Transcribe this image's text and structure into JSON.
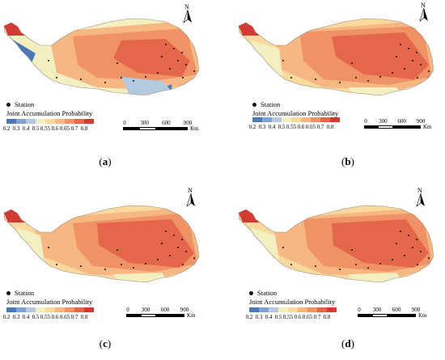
{
  "panels": [
    {
      "id": "a",
      "label_open": "(",
      "label_letter": "a",
      "label_close": ")"
    },
    {
      "id": "b",
      "label_open": "(",
      "label_letter": "b",
      "label_close": ")"
    },
    {
      "id": "c",
      "label_open": "(",
      "label_letter": "c",
      "label_close": ")"
    },
    {
      "id": "d",
      "label_open": "(",
      "label_letter": "d",
      "label_close": ")"
    }
  ],
  "legend": {
    "station_label": "Station",
    "title": "Joint Accumulation Probability",
    "class_labels": [
      "0.2",
      "0.3",
      "0.4",
      "0.5",
      "0.55",
      "0.6",
      "0.65",
      "0.7",
      "0.8"
    ],
    "colors": [
      "#4a78b8",
      "#7fa3cf",
      "#b5c9e0",
      "#f3efc0",
      "#f9d99e",
      "#f6b783",
      "#ef9266",
      "#e4674b",
      "#d23a34"
    ]
  },
  "scale_bar": {
    "ticks": [
      "0",
      "300",
      "600",
      "900"
    ],
    "unit": "Km"
  },
  "north_arrow": {
    "letter": "N"
  }
}
